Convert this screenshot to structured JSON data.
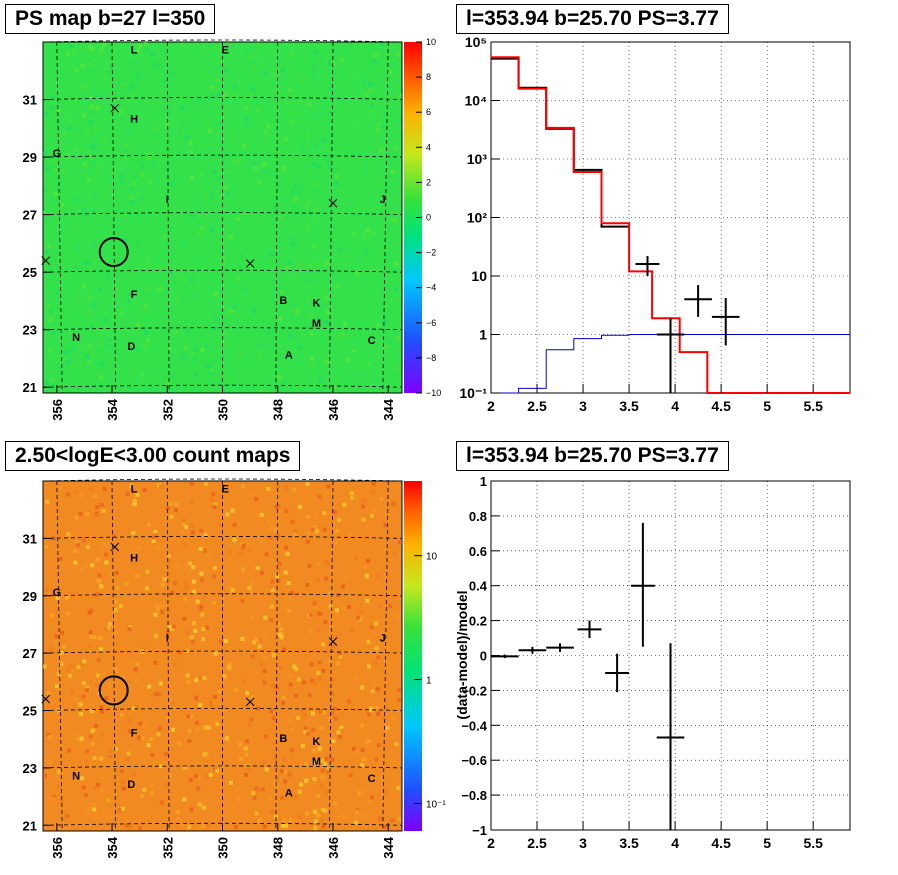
{
  "panels": {
    "ps_map": {
      "title": "PS map b=27 l=350",
      "x_ticks": [
        "356",
        "354",
        "352",
        "350",
        "348",
        "346",
        "344"
      ],
      "y_ticks": [
        "21",
        "23",
        "25",
        "27",
        "29",
        "31"
      ],
      "colorbar_ticks": [
        "10",
        "8",
        "6",
        "4",
        "2",
        "0",
        "−2",
        "−4",
        "−6",
        "−8",
        "−10"
      ],
      "source_labels": [
        "L",
        "E",
        "H",
        "G",
        "I",
        "J",
        "F",
        "B",
        "K",
        "M",
        "N",
        "D",
        "A",
        "C"
      ]
    },
    "spectrum": {
      "title": "l=353.94 b=25.70 PS=3.77",
      "x_ticks": [
        "2",
        "2.5",
        "3",
        "3.5",
        "4",
        "4.5",
        "5",
        "5.5"
      ],
      "y_ticks": [
        "10⁻¹",
        "1",
        "10",
        "10²",
        "10³",
        "10⁴",
        "10⁵"
      ]
    },
    "count_map": {
      "title": "2.50<logE<3.00 count maps",
      "x_ticks": [
        "356",
        "354",
        "352",
        "350",
        "348",
        "346",
        "344"
      ],
      "y_ticks": [
        "21",
        "23",
        "25",
        "27",
        "29",
        "31"
      ],
      "colorbar_ticks": [
        "10",
        "1",
        "10⁻¹"
      ]
    },
    "residual": {
      "title": "l=353.94 b=25.70 PS=3.77",
      "ylabel": "(data-model)/model",
      "x_ticks": [
        "2",
        "2.5",
        "3",
        "3.5",
        "4",
        "4.5",
        "5",
        "5.5"
      ],
      "y_ticks": [
        "−1",
        "−0.8",
        "−0.6",
        "−0.4",
        "−0.2",
        "0",
        "0.2",
        "0.4",
        "0.6",
        "0.8",
        "1"
      ]
    }
  },
  "colors": {
    "ps_map_background": "#33e14a",
    "count_map_background": "#f28a22",
    "model_total": "#ff0000",
    "model_source": "#0000cc",
    "data": "#000000"
  },
  "chart_data": [
    {
      "type": "heatmap",
      "panel": "PS map",
      "xlim": [
        356.5,
        343.5
      ],
      "ylim": [
        20.8,
        33.0
      ],
      "colorbar_range": [
        -10,
        10
      ],
      "marked_position": {
        "l": 353.94,
        "b": 25.7
      },
      "sources": [
        {
          "label": "L",
          "l": 353.2,
          "b": 32.6
        },
        {
          "label": "E",
          "l": 349.9,
          "b": 32.6
        },
        {
          "label": "H",
          "l": 353.2,
          "b": 30.2
        },
        {
          "label": "G",
          "l": 356.0,
          "b": 29.0
        },
        {
          "label": "I",
          "l": 352.0,
          "b": 27.4
        },
        {
          "label": "J",
          "l": 344.2,
          "b": 27.4
        },
        {
          "label": "F",
          "l": 353.2,
          "b": 24.1
        },
        {
          "label": "B",
          "l": 347.8,
          "b": 23.9
        },
        {
          "label": "K",
          "l": 346.6,
          "b": 23.8
        },
        {
          "label": "M",
          "l": 346.6,
          "b": 23.1
        },
        {
          "label": "N",
          "l": 355.3,
          "b": 22.6
        },
        {
          "label": "D",
          "l": 353.3,
          "b": 22.3
        },
        {
          "label": "A",
          "l": 347.6,
          "b": 22.0
        },
        {
          "label": "C",
          "l": 344.6,
          "b": 22.5
        }
      ],
      "crosses": [
        {
          "l": 353.9,
          "b": 30.7
        },
        {
          "l": 346.0,
          "b": 27.4
        },
        {
          "l": 356.4,
          "b": 25.4
        },
        {
          "l": 349.0,
          "b": 25.3
        }
      ]
    },
    {
      "type": "line",
      "panel": "spectrum",
      "xlim": [
        2.0,
        5.9
      ],
      "ylim": [
        0.1,
        100000
      ],
      "y_scale": "log",
      "grid": true,
      "bin_edges": [
        2.0,
        2.3,
        2.6,
        2.9,
        3.2,
        3.5,
        3.75,
        4.05,
        4.35,
        4.65,
        5.0,
        5.3,
        5.6,
        5.9
      ],
      "series": [
        {
          "color": "red",
          "values": [
            55000,
            16000,
            3400,
            600,
            80,
            12,
            1.9,
            0.5,
            0.1,
            0.1,
            0.1,
            0.1,
            0.1
          ]
        },
        {
          "color": "black",
          "values": [
            52000,
            16500,
            3300,
            650,
            70
          ]
        },
        {
          "color": "blue",
          "values": [
            0.1,
            0.12,
            0.55,
            0.85,
            0.97,
            1.0,
            1.0,
            1.0,
            1.0,
            1.0,
            1.0,
            1.0,
            1.0
          ]
        }
      ],
      "points": [
        {
          "x": 3.7,
          "y": 16,
          "xerr": 0.13,
          "ylo": 10,
          "yhi": 22
        },
        {
          "x": 3.95,
          "y": 1.0,
          "xerr": 0.15,
          "ylo": 0.1,
          "yhi": 1.9
        },
        {
          "x": 4.25,
          "y": 4.0,
          "xerr": 0.15,
          "ylo": 2.0,
          "yhi": 7.0
        },
        {
          "x": 4.55,
          "y": 2.0,
          "xerr": 0.15,
          "ylo": 0.65,
          "yhi": 4.2
        }
      ]
    },
    {
      "type": "heatmap",
      "panel": "count maps",
      "xlim": [
        356.5,
        343.5
      ],
      "ylim": [
        20.8,
        33.0
      ],
      "colorbar_range": [
        0.06,
        40
      ],
      "colorbar_scale": "log",
      "marked_position": {
        "l": 353.94,
        "b": 25.7
      }
    },
    {
      "type": "scatter",
      "panel": "residuals",
      "xlim": [
        2.0,
        5.9
      ],
      "ylim": [
        -1,
        1
      ],
      "grid": true,
      "points": [
        {
          "x": 2.15,
          "y": -0.005,
          "xerr": 0.15,
          "yerr": 0.01
        },
        {
          "x": 2.45,
          "y": 0.03,
          "xerr": 0.15,
          "yerr": 0.02
        },
        {
          "x": 2.75,
          "y": 0.045,
          "xerr": 0.15,
          "yerr": 0.025
        },
        {
          "x": 3.07,
          "y": 0.15,
          "xerr": 0.13,
          "yerr": 0.05
        },
        {
          "x": 3.37,
          "y": -0.1,
          "xerr": 0.13,
          "yerr": 0.11
        },
        {
          "x": 3.65,
          "y": 0.4,
          "xerr": 0.13,
          "ylo": 0.05,
          "yhi": 0.76
        },
        {
          "x": 3.95,
          "y": -0.47,
          "xerr": 0.15,
          "ylo": -1.0,
          "yhi": 0.07
        }
      ]
    }
  ]
}
